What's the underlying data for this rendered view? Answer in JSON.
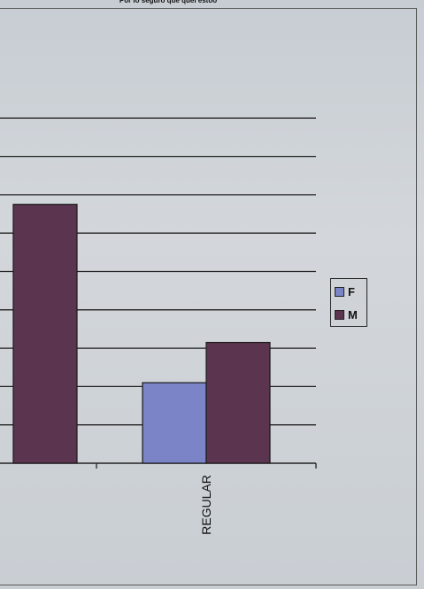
{
  "chart_data": {
    "type": "bar",
    "title": "Por lo seguro que quel estoo",
    "categories": [
      "",
      "REGULAR"
    ],
    "series": [
      {
        "name": "F",
        "color": "#7b84c6",
        "values": [
          null,
          4.2
        ]
      },
      {
        "name": "M",
        "color": "#5b3550",
        "values": [
          13.5,
          6.3
        ]
      }
    ],
    "ylim": [
      0,
      18
    ],
    "grid": true,
    "legend_position": "right"
  }
}
